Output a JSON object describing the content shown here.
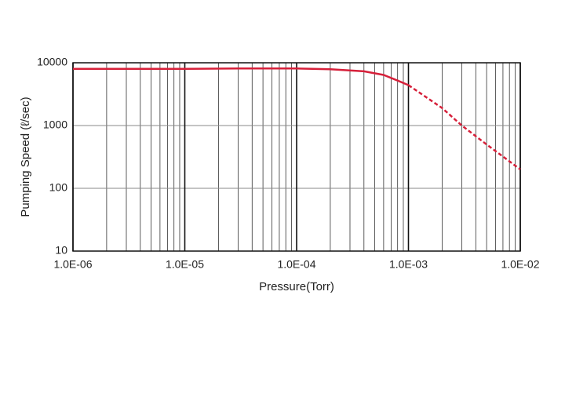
{
  "chart_data": {
    "type": "line",
    "x_label": "Pressure(Torr)",
    "y_label": "Pumping Speed (ℓ/sec)",
    "xscale": "log",
    "yscale": "log",
    "grid": true,
    "minor_grid": true,
    "xlim": [
      1e-06,
      0.01
    ],
    "ylim": [
      10,
      10000
    ],
    "xticks": [
      {
        "value": 1e-06,
        "label": "1.0E-06"
      },
      {
        "value": 1e-05,
        "label": "1.0E-05"
      },
      {
        "value": 0.0001,
        "label": "1.0E-04"
      },
      {
        "value": 0.001,
        "label": "1.0E-03"
      },
      {
        "value": 0.01,
        "label": "1.0E-02"
      }
    ],
    "yticks": [
      10,
      100,
      1000,
      10000
    ],
    "series": [
      {
        "color": "#d6203a",
        "dash": false,
        "x": [
          1e-06,
          3e-06,
          1e-05,
          3e-05,
          0.0001,
          0.0002,
          0.0004,
          0.0006,
          0.0008,
          0.001
        ],
        "values": [
          8000,
          8000,
          8000,
          8100,
          8100,
          7900,
          7300,
          6400,
          5200,
          4400
        ]
      },
      {
        "color": "#d6203a",
        "dash": true,
        "x": [
          0.001,
          0.002,
          0.003,
          0.005,
          0.01
        ],
        "values": [
          4400,
          1900,
          1000,
          500,
          200
        ]
      }
    ]
  }
}
